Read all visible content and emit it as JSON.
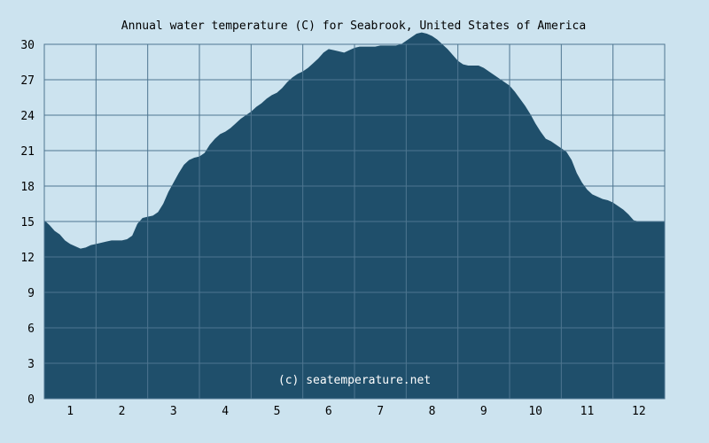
{
  "chart_data": {
    "type": "area",
    "title": "Annual water temperature (C) for Seabrook, United States of America",
    "xlabel": "",
    "ylabel": "",
    "watermark": "(c) seatemperature.net",
    "x_ticks": [
      "1",
      "2",
      "3",
      "4",
      "5",
      "6",
      "7",
      "8",
      "9",
      "10",
      "11",
      "12"
    ],
    "y_ticks": [
      "0",
      "3",
      "6",
      "9",
      "12",
      "15",
      "18",
      "21",
      "24",
      "27",
      "30"
    ],
    "xlim": [
      0.5,
      12.5
    ],
    "ylim": [
      0,
      30
    ],
    "grid": true,
    "legend": "none",
    "colors": {
      "background": "#cce3ef",
      "fill": "#1f4f6b",
      "grid": "#4e7690"
    },
    "series": [
      {
        "x": [
          0.5,
          0.6,
          0.7,
          0.8,
          0.9,
          1.0,
          1.1,
          1.2,
          1.3,
          1.4,
          1.5,
          1.6,
          1.7,
          1.8,
          1.9,
          2.0,
          2.1,
          2.2,
          2.3,
          2.4,
          2.5,
          2.6,
          2.7,
          2.8,
          2.9,
          3.0,
          3.1,
          3.2,
          3.3,
          3.4,
          3.5,
          3.6,
          3.7,
          3.8,
          3.9,
          4.0,
          4.1,
          4.2,
          4.3,
          4.4,
          4.5,
          4.6,
          4.7,
          4.8,
          4.9,
          5.0,
          5.1,
          5.2,
          5.3,
          5.4,
          5.5,
          5.6,
          5.7,
          5.8,
          5.9,
          6.0,
          6.1,
          6.2,
          6.3,
          6.4,
          6.5,
          6.6,
          6.7,
          6.8,
          6.9,
          7.0,
          7.1,
          7.2,
          7.3,
          7.4,
          7.5,
          7.6,
          7.7,
          7.8,
          7.9,
          8.0,
          8.1,
          8.2,
          8.3,
          8.4,
          8.5,
          8.6,
          8.7,
          8.8,
          8.9,
          9.0,
          9.1,
          9.2,
          9.3,
          9.4,
          9.5,
          9.6,
          9.7,
          9.8,
          9.9,
          10.0,
          10.1,
          10.2,
          10.3,
          10.4,
          10.5,
          10.6,
          10.7,
          10.8,
          10.9,
          11.0,
          11.1,
          11.2,
          11.3,
          11.4,
          11.5,
          11.6,
          11.7,
          11.8,
          11.9,
          12.0,
          12.1,
          12.2,
          12.3,
          12.4,
          12.5
        ],
        "values": [
          15.1,
          14.7,
          14.2,
          13.9,
          13.4,
          13.1,
          12.9,
          12.7,
          12.8,
          13.0,
          13.1,
          13.2,
          13.3,
          13.4,
          13.4,
          13.4,
          13.5,
          13.8,
          14.8,
          15.3,
          15.4,
          15.5,
          15.8,
          16.5,
          17.5,
          18.3,
          19.1,
          19.8,
          20.2,
          20.4,
          20.5,
          20.8,
          21.5,
          22.0,
          22.4,
          22.6,
          22.9,
          23.3,
          23.7,
          24.0,
          24.3,
          24.7,
          25.0,
          25.4,
          25.7,
          25.9,
          26.3,
          26.8,
          27.2,
          27.5,
          27.7,
          28.0,
          28.4,
          28.8,
          29.3,
          29.6,
          29.5,
          29.4,
          29.3,
          29.5,
          29.7,
          29.8,
          29.8,
          29.8,
          29.8,
          29.9,
          29.9,
          29.9,
          29.9,
          30.0,
          30.3,
          30.6,
          30.9,
          31.0,
          30.9,
          30.7,
          30.4,
          30.0,
          29.6,
          29.1,
          28.6,
          28.3,
          28.2,
          28.2,
          28.2,
          28.0,
          27.7,
          27.4,
          27.1,
          26.8,
          26.5,
          26.0,
          25.4,
          24.8,
          24.1,
          23.3,
          22.6,
          22.0,
          21.8,
          21.5,
          21.2,
          20.9,
          20.2,
          19.1,
          18.3,
          17.7,
          17.3,
          17.1,
          16.9,
          16.8,
          16.6,
          16.3,
          16.0,
          15.6,
          15.1,
          15.0,
          15.0,
          15.0,
          15.0,
          15.0,
          15.0
        ]
      }
    ]
  }
}
